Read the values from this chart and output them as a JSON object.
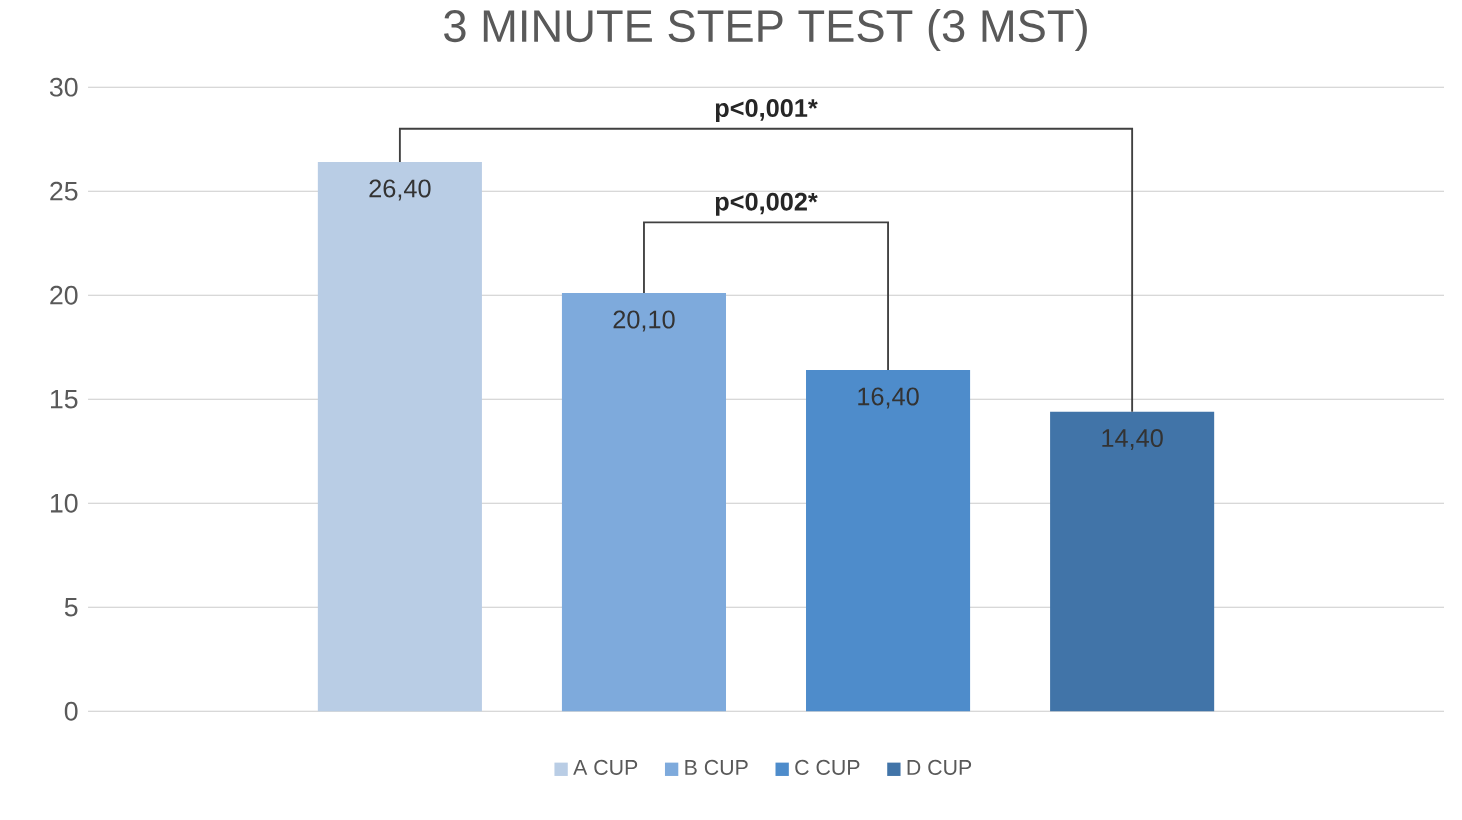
{
  "chart_data": {
    "type": "bar",
    "title": "3 MINUTE STEP TEST (3 MST)",
    "categories": [
      null
    ],
    "series": [
      {
        "name": "A CUP",
        "color": "#b9cde5",
        "values": [
          26.4
        ],
        "value_labels": [
          "26,40"
        ]
      },
      {
        "name": "B CUP",
        "color": "#7eaadc",
        "values": [
          20.1
        ],
        "value_labels": [
          "20,10"
        ]
      },
      {
        "name": "C CUP",
        "color": "#4e8ccb",
        "values": [
          16.4
        ],
        "value_labels": [
          "16,40"
        ]
      },
      {
        "name": "D CUP",
        "color": "#4174a8",
        "values": [
          14.4
        ],
        "value_labels": [
          "14,40"
        ]
      }
    ],
    "ylim": [
      0,
      30
    ],
    "yticks": [
      0,
      5,
      10,
      15,
      20,
      25,
      30
    ],
    "grid": "y",
    "legend": "bottom",
    "annotations": [
      "p<0,001*",
      "p<0,002*"
    ]
  }
}
